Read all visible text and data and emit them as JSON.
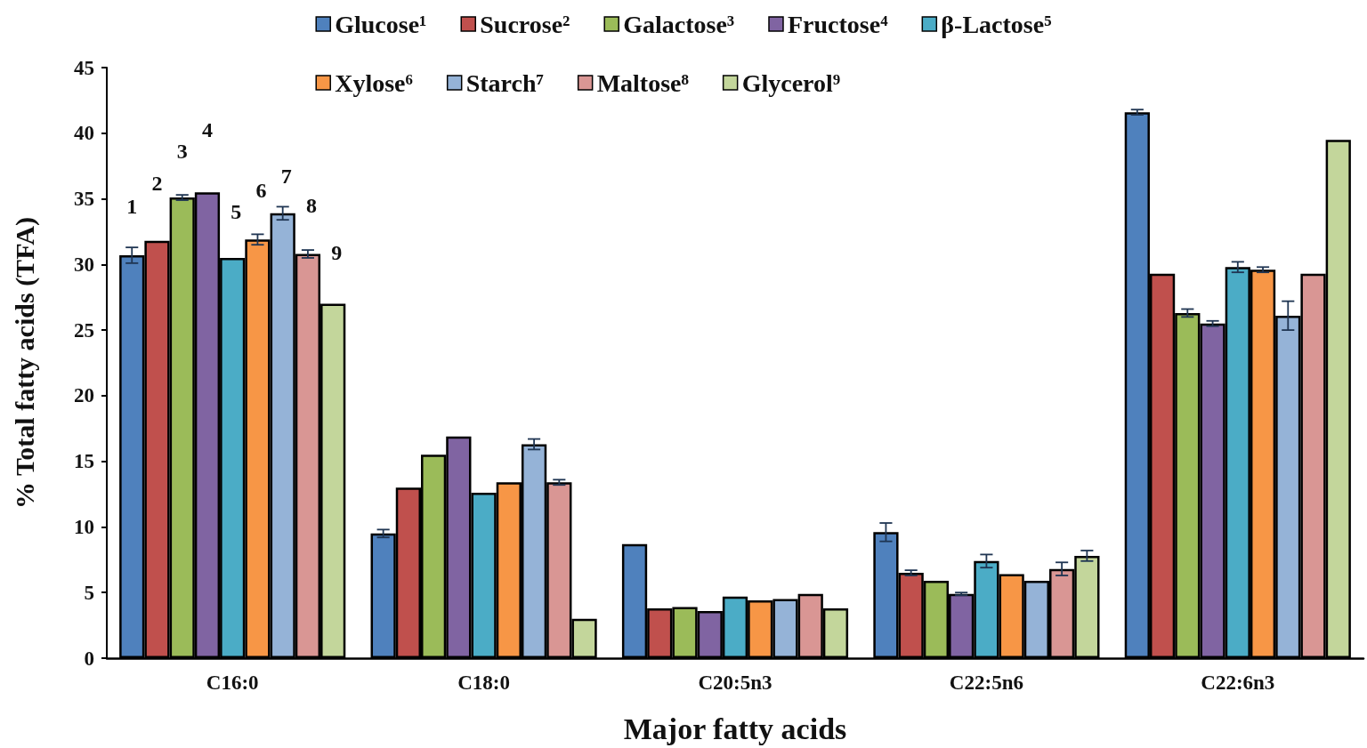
{
  "chart_data": {
    "type": "bar",
    "xlabel": "Major fatty acids",
    "ylabel": "% Total fatty acids (TFA)",
    "categories": [
      "C16:0",
      "C18:0",
      "C20:5n3",
      "C22:5n6",
      "C22:6n3"
    ],
    "annotations": [
      "1",
      "2",
      "3",
      "4",
      "5",
      "6",
      "7",
      "8",
      "9"
    ],
    "ylim": [
      0,
      45
    ],
    "yticks": [
      0,
      5,
      10,
      15,
      20,
      25,
      30,
      35,
      40,
      45
    ],
    "grid": false,
    "legend": "top",
    "series": [
      {
        "name": "Glucose¹",
        "color": "#4f81bd",
        "values": [
          30.7,
          9.5,
          8.7,
          9.6,
          41.6
        ],
        "errors": [
          0.6,
          0.3,
          null,
          0.7,
          0.2
        ]
      },
      {
        "name": "Sucrose²",
        "color": "#c0504d",
        "values": [
          31.8,
          13.0,
          3.8,
          6.5,
          29.3
        ],
        "errors": [
          null,
          null,
          null,
          0.2,
          null
        ]
      },
      {
        "name": "Galactose³",
        "color": "#9bbb59",
        "values": [
          35.1,
          15.5,
          3.9,
          5.9,
          26.3
        ],
        "errors": [
          0.2,
          null,
          null,
          null,
          0.3
        ]
      },
      {
        "name": "Fructose⁴",
        "color": "#8064a2",
        "values": [
          35.5,
          16.9,
          3.6,
          4.9,
          25.5
        ],
        "errors": [
          null,
          null,
          null,
          0.1,
          0.2
        ]
      },
      {
        "name": "β-Lactose⁵",
        "color": "#4bacc6",
        "values": [
          30.5,
          12.6,
          4.7,
          7.4,
          29.8
        ],
        "errors": [
          null,
          null,
          null,
          0.5,
          0.4
        ]
      },
      {
        "name": "Xylose⁶",
        "color": "#f79646",
        "values": [
          31.9,
          13.4,
          4.4,
          6.4,
          29.6
        ],
        "errors": [
          0.4,
          null,
          null,
          null,
          0.2
        ]
      },
      {
        "name": "Starch⁷",
        "color": "#95b3d7",
        "values": [
          33.9,
          16.3,
          4.5,
          5.9,
          26.1
        ],
        "errors": [
          0.5,
          0.4,
          null,
          null,
          1.1
        ]
      },
      {
        "name": "Maltose⁸",
        "color": "#d99694",
        "values": [
          30.8,
          13.4,
          4.9,
          6.8,
          29.3
        ],
        "errors": [
          0.3,
          0.2,
          null,
          0.5,
          null
        ]
      },
      {
        "name": "Glycerol⁹",
        "color": "#c3d69b",
        "values": [
          27.0,
          3.0,
          3.8,
          7.8,
          39.5
        ],
        "errors": [
          null,
          null,
          null,
          0.4,
          null
        ]
      }
    ]
  }
}
